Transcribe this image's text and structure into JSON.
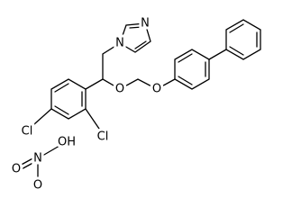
{
  "molecule": {
    "atoms": [
      "N",
      "N",
      "O",
      "O",
      "Cl",
      "Cl"
    ]
  },
  "counterion": {
    "atoms": [
      "O",
      "N",
      "OH",
      "O"
    ]
  }
}
